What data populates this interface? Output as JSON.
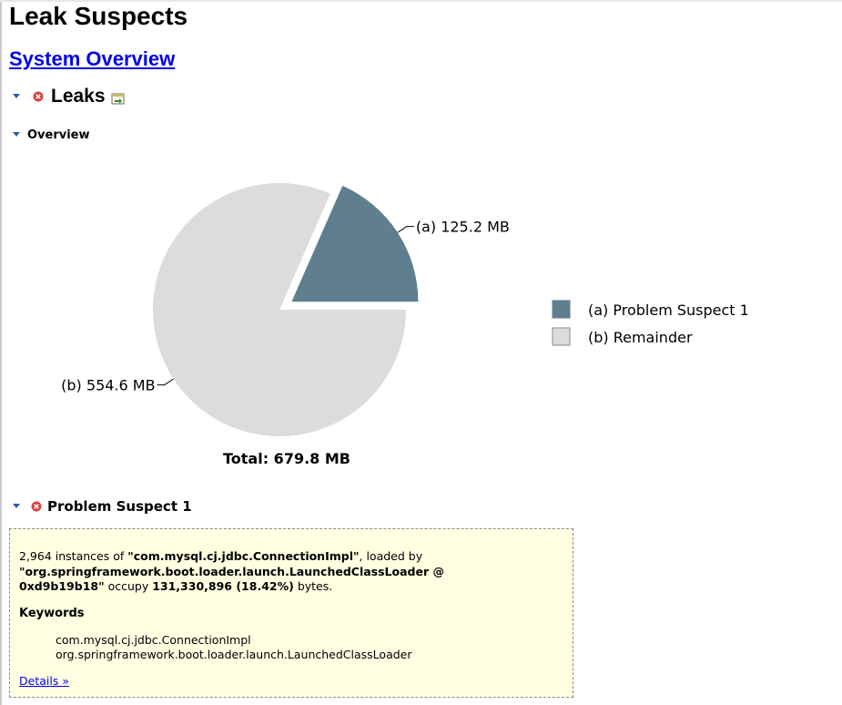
{
  "page": {
    "title": "Leak Suspects",
    "system_overview_link": "System Overview"
  },
  "leaks_section": {
    "title": "Leaks"
  },
  "overview_section": {
    "title": "Overview"
  },
  "chart_data": {
    "type": "pie",
    "slices": [
      {
        "tag": "(a)",
        "label": "Problem Suspect 1",
        "value": 125.2,
        "display": "125.2 MB",
        "color": "#5f7f8f",
        "exploded": true
      },
      {
        "tag": "(b)",
        "label": "Remainder",
        "value": 554.6,
        "display": "554.6 MB",
        "color": "#dcdcdc",
        "exploded": false
      }
    ],
    "total_label": "Total: 679.8 MB",
    "legend_position": "right"
  },
  "suspect": {
    "title": "Problem Suspect 1",
    "count": "2,964",
    "text_instances_of": " instances of ",
    "class_name": "\"com.mysql.cj.jdbc.ConnectionImpl\"",
    "text_loaded_by": ", loaded by ",
    "loader": "\"org.springframework.boot.loader.launch.LaunchedClassLoader @ 0xd9b19b18\"",
    "text_occupy": " occupy ",
    "bytes": "131,330,896 (18.42%)",
    "text_bytes": " bytes.",
    "keywords_title": "Keywords",
    "keywords": [
      "com.mysql.cj.jdbc.ConnectionImpl",
      "org.springframework.boot.loader.launch.LaunchedClassLoader"
    ],
    "details_link": "Details »"
  },
  "colors": {
    "link": "#0000ee",
    "box_bg": "#ffffe1",
    "error_red": "#d64545",
    "toggle_blue": "#2a5db0"
  }
}
